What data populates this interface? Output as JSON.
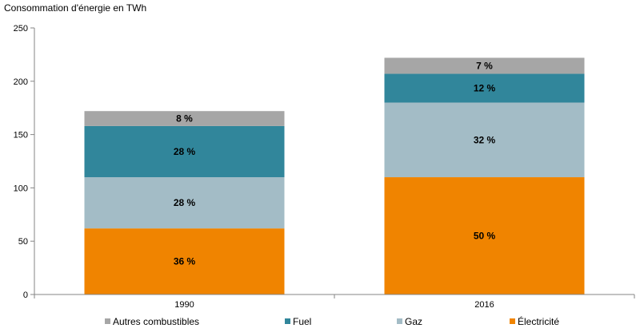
{
  "chart_data": {
    "type": "bar",
    "stacked": true,
    "title": "",
    "ylabel": "Consommation d'énergie en TWh",
    "xlabel": "",
    "ylim": [
      0,
      250
    ],
    "yticks": [
      0,
      50,
      100,
      150,
      200,
      250
    ],
    "grid": false,
    "legend_position": "bottom",
    "categories": [
      "1990",
      "2016"
    ],
    "series": [
      {
        "name": "Électricité",
        "color": "#f08400",
        "values": [
          62,
          110
        ],
        "labels": [
          "36 %",
          "50 %"
        ]
      },
      {
        "name": "Gaz",
        "color": "#a3bcc6",
        "values": [
          48,
          70
        ],
        "labels": [
          "28 %",
          "32 %"
        ]
      },
      {
        "name": "Fuel",
        "color": "#31869b",
        "values": [
          48,
          27
        ],
        "labels": [
          "28 %",
          "12 %"
        ]
      },
      {
        "name": "Autres combustibles",
        "color": "#a6a6a6",
        "values": [
          14,
          15
        ],
        "labels": [
          "8 %",
          "7 %"
        ]
      }
    ],
    "legend_order": [
      "Autres combustibles",
      "Fuel",
      "Gaz",
      "Électricité"
    ]
  }
}
